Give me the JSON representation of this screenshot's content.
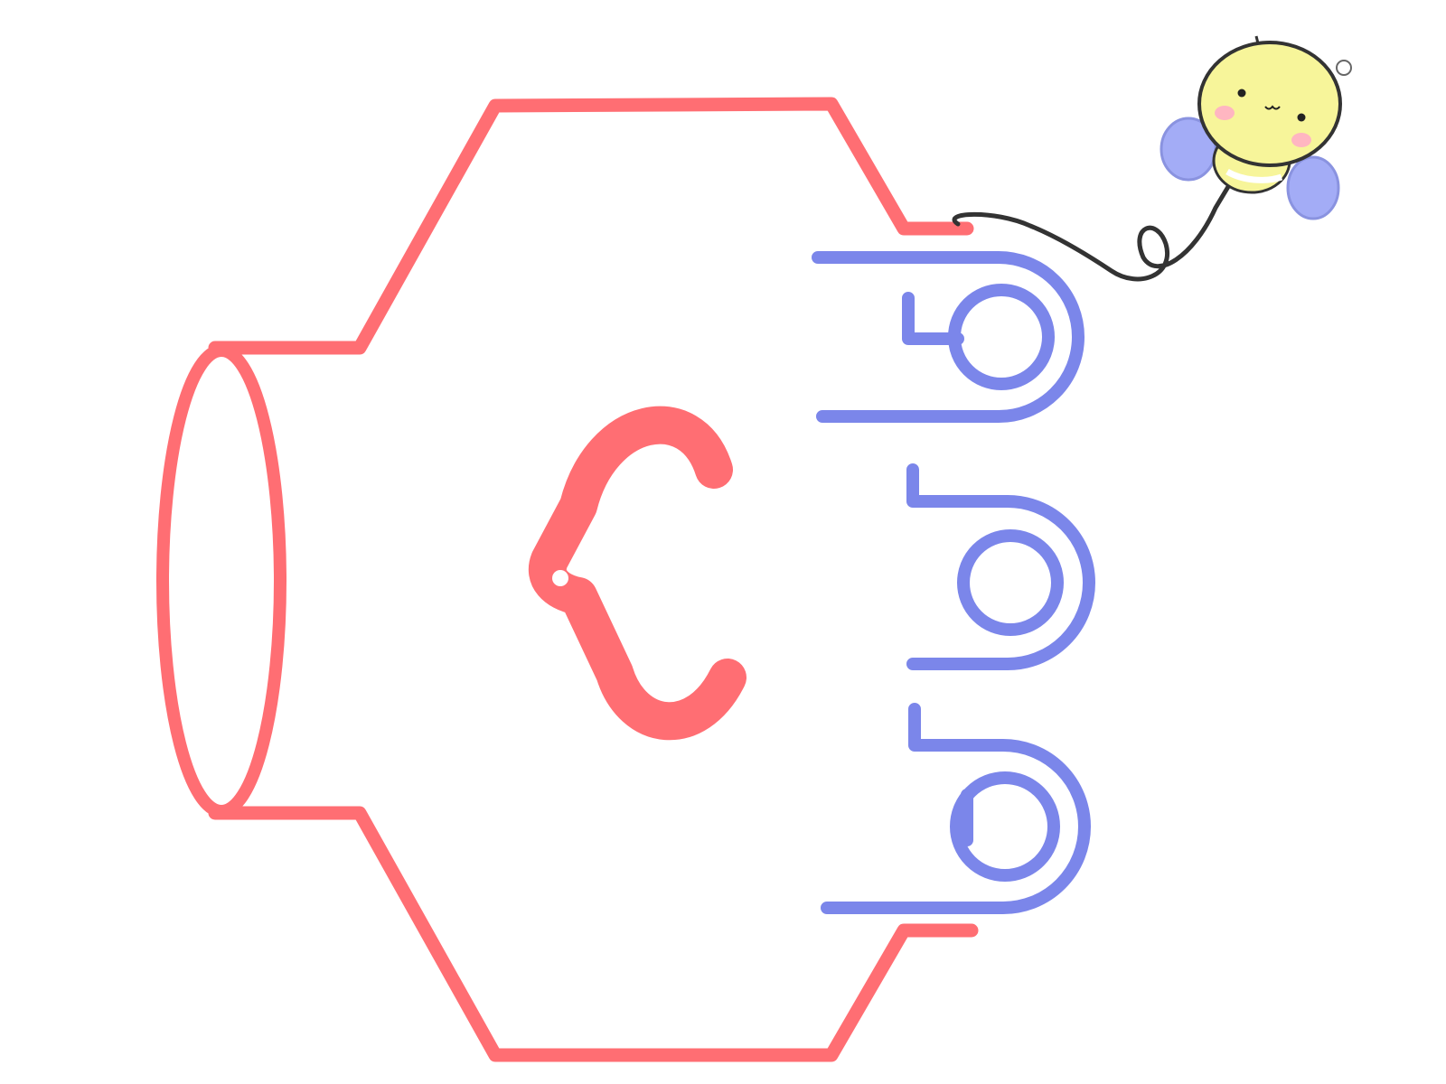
{
  "illustration": {
    "subject": "",
    "colors": {
      "background": "#ffffff",
      "outline": "#ff6e73",
      "letter": "#ff6e73",
      "coils": "#7b86ea",
      "bee_body": "#f7f59a",
      "bee_wings": "#a3acf6",
      "bee_cheeks": "#ffb6c1",
      "bee_stripe": "#2b2b2b",
      "string": "#333333"
    },
    "icons": [
      "cylinder-outline",
      "letter-c-glyph",
      "coil-loops",
      "bee-mascot",
      "tether-string"
    ]
  }
}
